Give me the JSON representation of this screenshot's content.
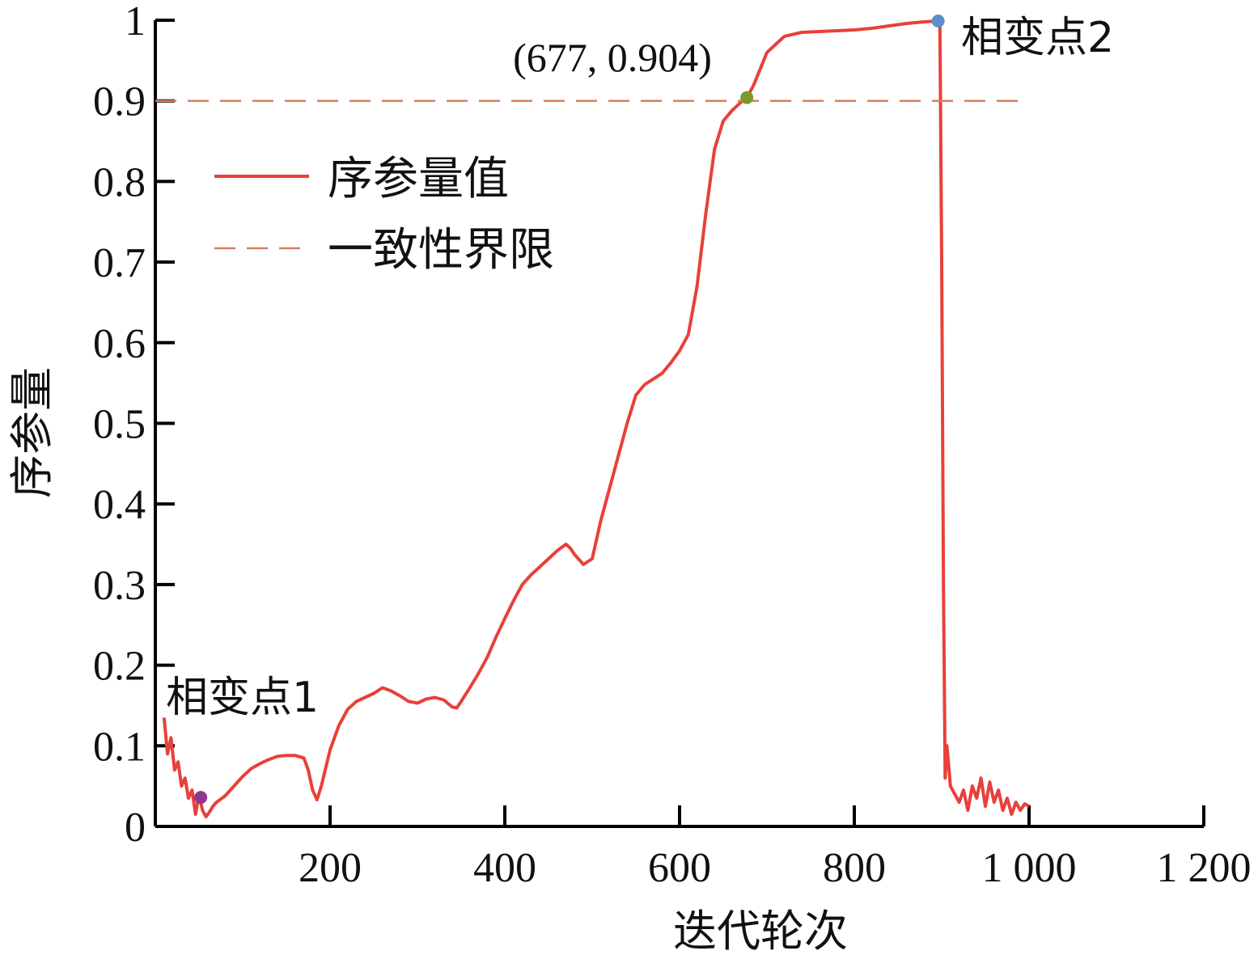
{
  "chart_data": {
    "type": "line",
    "xlabel": "迭代轮次",
    "ylabel": "序参量",
    "xlim": [
      0,
      1200
    ],
    "ylim": [
      0,
      1
    ],
    "x_ticks": [
      200,
      400,
      600,
      800,
      1000,
      1200
    ],
    "x_tick_labels": [
      "200",
      "400",
      "600",
      "800",
      "1 000",
      "1 200"
    ],
    "y_ticks": [
      0,
      0.1,
      0.2,
      0.3,
      0.4,
      0.5,
      0.6,
      0.7,
      0.8,
      0.9,
      1
    ],
    "y_tick_labels": [
      "0",
      "0.1",
      "0.2",
      "0.3",
      "0.4",
      "0.5",
      "0.6",
      "0.7",
      "0.8",
      "0.9",
      "1"
    ],
    "grid": false,
    "legend_position": "upper-left",
    "series": [
      {
        "name": "序参量值",
        "color": "#e8403a",
        "style": "solid",
        "x": [
          10,
          14,
          18,
          22,
          26,
          30,
          34,
          38,
          42,
          46,
          50,
          54,
          58,
          62,
          66,
          70,
          80,
          90,
          100,
          110,
          120,
          130,
          140,
          150,
          160,
          170,
          175,
          180,
          185,
          190,
          200,
          210,
          220,
          230,
          240,
          250,
          260,
          270,
          280,
          290,
          300,
          310,
          320,
          330,
          340,
          345,
          350,
          360,
          370,
          380,
          390,
          400,
          410,
          420,
          430,
          440,
          450,
          460,
          470,
          475,
          480,
          490,
          500,
          510,
          520,
          530,
          540,
          550,
          560,
          570,
          580,
          590,
          600,
          610,
          620,
          630,
          640,
          650,
          660,
          670,
          677,
          685,
          700,
          720,
          740,
          760,
          780,
          800,
          820,
          840,
          860,
          880,
          896,
          898,
          900,
          902,
          904,
          906,
          910,
          915,
          920,
          925,
          930,
          935,
          940,
          945,
          950,
          955,
          960,
          965,
          970,
          975,
          980,
          985,
          990,
          995,
          1000
        ],
        "y": [
          0.135,
          0.09,
          0.11,
          0.07,
          0.08,
          0.05,
          0.06,
          0.035,
          0.045,
          0.015,
          0.04,
          0.02,
          0.012,
          0.018,
          0.025,
          0.03,
          0.038,
          0.05,
          0.062,
          0.072,
          0.078,
          0.083,
          0.087,
          0.088,
          0.088,
          0.085,
          0.07,
          0.045,
          0.033,
          0.05,
          0.095,
          0.125,
          0.145,
          0.155,
          0.16,
          0.165,
          0.172,
          0.168,
          0.162,
          0.155,
          0.153,
          0.158,
          0.16,
          0.157,
          0.148,
          0.147,
          0.155,
          0.172,
          0.19,
          0.21,
          0.235,
          0.258,
          0.28,
          0.3,
          0.312,
          0.322,
          0.332,
          0.342,
          0.35,
          0.345,
          0.337,
          0.325,
          0.332,
          0.38,
          0.42,
          0.46,
          0.5,
          0.535,
          0.548,
          0.555,
          0.562,
          0.575,
          0.59,
          0.61,
          0.67,
          0.76,
          0.84,
          0.875,
          0.888,
          0.898,
          0.904,
          0.92,
          0.96,
          0.98,
          0.985,
          0.986,
          0.987,
          0.988,
          0.99,
          0.993,
          0.996,
          0.998,
          0.999,
          0.998,
          0.7,
          0.3,
          0.06,
          0.1,
          0.05,
          0.04,
          0.03,
          0.045,
          0.02,
          0.05,
          0.035,
          0.06,
          0.025,
          0.055,
          0.03,
          0.045,
          0.02,
          0.035,
          0.015,
          0.03,
          0.02,
          0.028,
          0.025
        ]
      },
      {
        "name": "一致性界限",
        "color": "#d9805a",
        "style": "dashed",
        "x": [
          0,
          1000
        ],
        "y": [
          0.9,
          0.9
        ]
      }
    ],
    "points": [
      {
        "label": "相变点1",
        "x": 52,
        "y": 0.036,
        "color": "#8b3a8b"
      },
      {
        "label": "(677, 0.904)",
        "x": 677,
        "y": 0.904,
        "color": "#7a9a2a"
      },
      {
        "label": "相变点2",
        "x": 896,
        "y": 0.999,
        "color": "#5b8fc7"
      }
    ]
  }
}
